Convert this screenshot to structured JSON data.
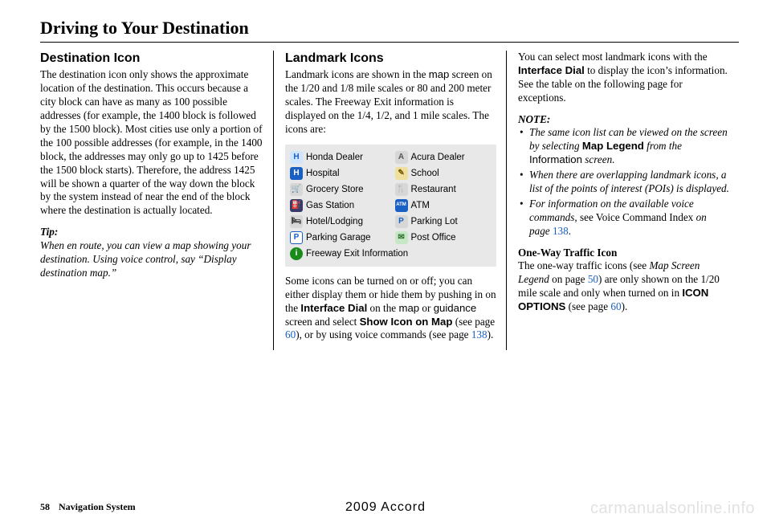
{
  "page_title": "Driving to Your Destination",
  "col1": {
    "heading": "Destination Icon",
    "body": "The destination icon only shows the approximate location of the destination. This occurs because a city block can have as many as 100 possible addresses (for example, the 1400 block is followed by the 1500 block). Most cities use only a portion of the 100 possible addresses (for example, in the 1400 block, the addresses may only go up to 1425 before the 1500 block starts). Therefore, the address 1425 will be shown a quarter of the way down the block by the system instead of near the end of the block where the destination is actually located.",
    "tip_label": "Tip:",
    "tip_body": "When en route, you can view a map showing your destination. Using voice control, say “Display destination map.”"
  },
  "col2": {
    "heading": "Landmark Icons",
    "intro_a": "Landmark icons are shown in the ",
    "intro_map": "map",
    "intro_b": " screen on the 1/20 and 1/8 mile scales or 80 and 200 meter scales. The Freeway Exit information is displayed on the 1/4, 1/2, and 1 mile scales. The icons are:",
    "icons": {
      "rows": [
        [
          {
            "name": "honda-dealer-icon",
            "label": "Honda Dealer",
            "bg": "#cfe4ff",
            "fg": "#1a5fc4",
            "glyph": "H"
          },
          {
            "name": "acura-dealer-icon",
            "label": "Acura Dealer",
            "bg": "#d7d7d7",
            "fg": "#555",
            "glyph": "A"
          }
        ],
        [
          {
            "name": "hospital-icon",
            "label": "Hospital",
            "bg": "#1a5fc4",
            "fg": "#ffffff",
            "glyph": "H"
          },
          {
            "name": "school-icon",
            "label": "School",
            "bg": "#efe0a0",
            "fg": "#7a5a00",
            "glyph": "✎"
          }
        ],
        [
          {
            "name": "grocery-icon",
            "label": "Grocery Store",
            "bg": "#d7d7d7",
            "fg": "#333",
            "glyph": "🛒"
          },
          {
            "name": "restaurant-icon",
            "label": "Restaurant",
            "bg": "#d7d7d7",
            "fg": "#333",
            "glyph": "🍴"
          }
        ],
        [
          {
            "name": "gas-icon",
            "label": "Gas Station",
            "bg": "#3a3a6a",
            "fg": "#fff",
            "glyph": "⛽"
          },
          {
            "name": "atm-icon",
            "label": "ATM",
            "bg": "#1a5fc4",
            "fg": "#ffffff",
            "glyph": "ATM"
          }
        ],
        [
          {
            "name": "hotel-icon",
            "label": "Hotel/Lodging",
            "bg": "#d7d7d7",
            "fg": "#333",
            "glyph": "🛏"
          },
          {
            "name": "parking-lot-icon",
            "label": "Parking Lot",
            "bg": "#d7d7d7",
            "fg": "#1a5fc4",
            "glyph": "P"
          }
        ],
        [
          {
            "name": "parking-garage-icon",
            "label": "Parking Garage",
            "bg": "#ffffff",
            "fg": "#1a5fc4",
            "glyph": "P"
          },
          {
            "name": "post-office-icon",
            "label": "Post Office",
            "bg": "#c7e8c7",
            "fg": "#2a6a2a",
            "glyph": "✉"
          }
        ]
      ],
      "single": {
        "name": "freeway-exit-icon",
        "label": "Freeway Exit Information",
        "bg": "#1a8a1a",
        "fg": "#ffffff",
        "glyph": "i"
      }
    },
    "after_a": "Some icons can be turned on or off; you can either display them or hide them by pushing in on the ",
    "after_iface": "Interface Dial",
    "after_b": " on the ",
    "after_map": "map",
    "after_c": " or ",
    "after_guidance": "guidance",
    "after_d": " screen and select ",
    "after_show": "Show Icon on Map",
    "after_e": " (see page ",
    "after_p1": "60",
    "after_f": "), or by using voice commands (see page ",
    "after_p2": "138",
    "after_g": ")."
  },
  "col3": {
    "top_a": "You can select most landmark icons with the ",
    "top_iface": "Interface Dial",
    "top_b": " to display the icon’s information. See the table on the following page for exceptions.",
    "note_label": "NOTE:",
    "notes": {
      "n1_a": "The same icon list can be viewed on the screen by selecting ",
      "n1_ml": "Map Legend",
      "n1_b": " from the ",
      "n1_info": "Information",
      "n1_c": " screen.",
      "n2": "When there are overlapping landmark icons, a list of the points of interest (POIs) is displayed.",
      "n3_a": "For information on the available voice commands, ",
      "n3_see": "see ",
      "n3_vci": "Voice Command Index",
      "n3_on": " on page ",
      "n3_pg": "138",
      "n3_dot": "."
    },
    "oneway_h": "One-Way Traffic Icon",
    "oneway_a": "The one-way traffic icons (see ",
    "oneway_msl": "Map Screen Legend",
    "oneway_b": " on page ",
    "oneway_p1": "50",
    "oneway_c": ") are only shown on the 1/20 mile scale and only when turned on in ",
    "oneway_opt": "ICON OPTIONS",
    "oneway_d": " (see page ",
    "oneway_p2": "60",
    "oneway_e": ")."
  },
  "footer": {
    "page": "58",
    "system": "Navigation System",
    "model": "2009  Accord",
    "watermark": "carmanualsonline.info"
  },
  "colors": {
    "link": "#1a5fc4",
    "icon_bg": "#e8e8e8"
  }
}
